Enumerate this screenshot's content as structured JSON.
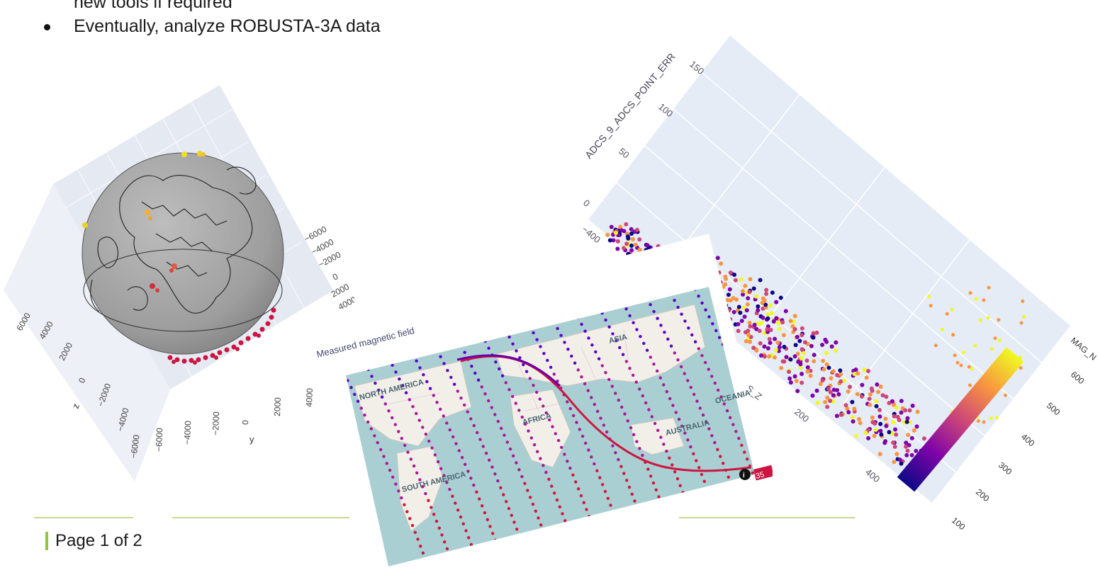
{
  "bullets": [
    {
      "text": "new tools if required",
      "bulleted": false
    },
    {
      "text": "Eventually, analyze ROBUSTA-3A data",
      "bulleted": true
    }
  ],
  "footer": {
    "page_label": "Page 1 of 2"
  },
  "globe_plot": {
    "x_axis_label": "x",
    "y_axis_label": "y",
    "z_axis_label": "z",
    "x_ticks": [
      "−6000",
      "−4000",
      "−2000",
      "0",
      "2000",
      "4000"
    ],
    "y_ticks": [
      "−6000",
      "−4000",
      "−2000",
      "0",
      "2000",
      "4000"
    ],
    "z_ticks": [
      "−6000",
      "−4000",
      "−2000",
      "0",
      "2000",
      "4000",
      "6000"
    ]
  },
  "map_plot": {
    "title": "Measured magnetic field",
    "region_labels": [
      "NORTH AMERICA",
      "ASIA",
      "AFRICA",
      "SOUTH AMERICA",
      "AUSTRALIA",
      "OCEANIA"
    ],
    "badge_value": "35",
    "info_icon": "info-icon"
  },
  "scatter_plot": {
    "y_axis_label": "ADCS_9_ADCS_POINT_ERR",
    "y_ticks": [
      "150",
      "100",
      "50",
      "0"
    ],
    "x_ticks": [
      "−400",
      "200",
      "400"
    ],
    "partial_axis_label": "S_Z",
    "colorbar_title": "MAG_N",
    "colorbar_ticks": [
      "600",
      "500",
      "400",
      "300",
      "200",
      "100"
    ],
    "colorscale": [
      "#0d0887",
      "#7e03a8",
      "#cc4778",
      "#f89540",
      "#f0f921"
    ]
  }
}
